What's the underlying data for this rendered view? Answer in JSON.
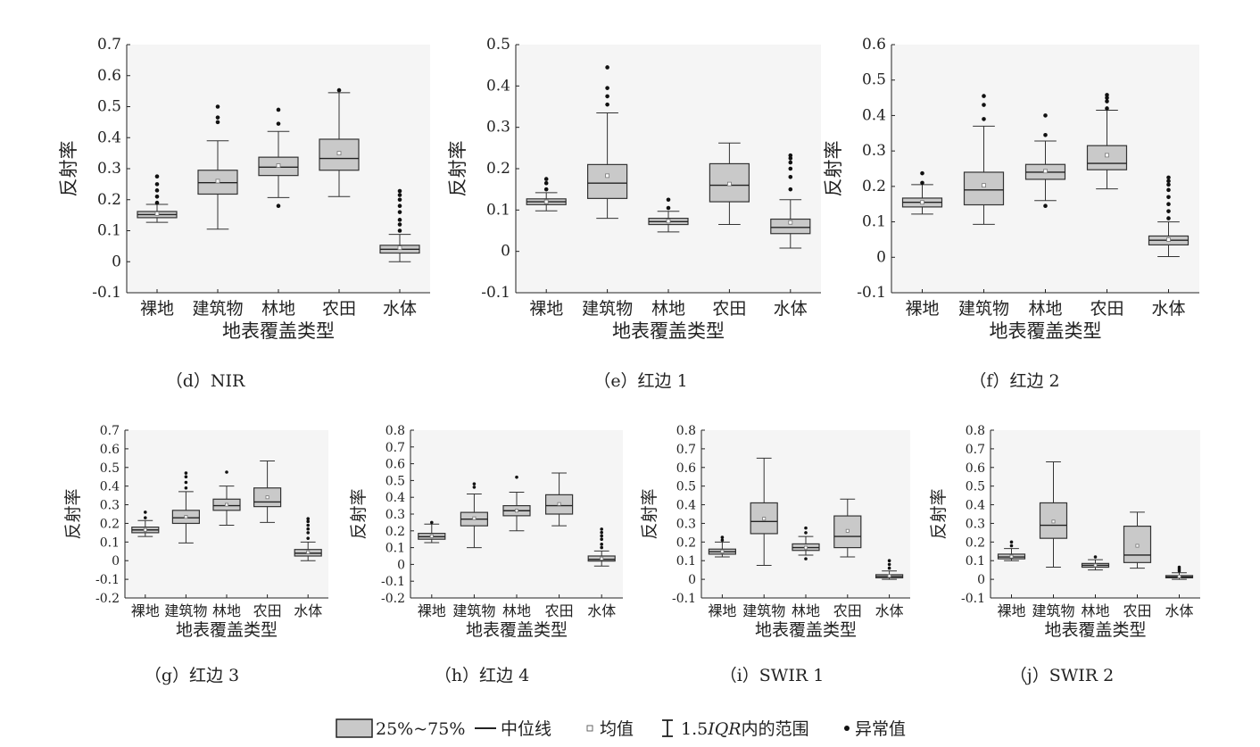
{
  "common": {
    "xlabel": "地表覆盖类型",
    "ylabel": "反射率",
    "categories": [
      "裸地",
      "建筑物",
      "林地",
      "农田",
      "水体"
    ]
  },
  "legend": {
    "box": "25%~75%",
    "median": "中位线",
    "mean": "均值",
    "whisker_prefix": "1.5",
    "whisker_italic": "IQR",
    "whisker_suffix": "内的范围",
    "outlier": "异常值"
  },
  "colors": {
    "box_fill": "#c9c9c9",
    "panel_bg": "#f5f5f5"
  },
  "chart_data": [
    {
      "id": "d",
      "type": "box",
      "caption": "（d）NIR",
      "ylim": [
        -0.1,
        0.7
      ],
      "yticks": [
        "-0.1",
        "0",
        "0.1",
        "0.2",
        "0.3",
        "0.4",
        "0.5",
        "0.6",
        "0.7"
      ],
      "series": [
        {
          "q1": 0.142,
          "median": 0.152,
          "q3": 0.162,
          "mean": 0.155,
          "wlow": 0.127,
          "whigh": 0.185,
          "outliers": [
            0.19,
            0.21,
            0.23,
            0.25,
            0.275
          ]
        },
        {
          "q1": 0.218,
          "median": 0.255,
          "q3": 0.295,
          "mean": 0.26,
          "wlow": 0.105,
          "whigh": 0.39,
          "outliers": [
            0.45,
            0.465,
            0.5
          ]
        },
        {
          "q1": 0.278,
          "median": 0.305,
          "q3": 0.337,
          "mean": 0.31,
          "wlow": 0.207,
          "whigh": 0.42,
          "outliers": [
            0.18,
            0.445,
            0.49
          ]
        },
        {
          "q1": 0.295,
          "median": 0.333,
          "q3": 0.395,
          "mean": 0.35,
          "wlow": 0.21,
          "whigh": 0.545,
          "outliers": [
            0.553
          ]
        },
        {
          "q1": 0.028,
          "median": 0.04,
          "q3": 0.053,
          "mean": 0.045,
          "wlow": 0.0,
          "whigh": 0.088,
          "outliers": [
            0.1,
            0.12,
            0.135,
            0.16,
            0.18,
            0.2,
            0.215,
            0.228
          ]
        }
      ]
    },
    {
      "id": "e",
      "type": "box",
      "caption": "（e）红边 1",
      "ylim": [
        -0.1,
        0.5
      ],
      "yticks": [
        "-0.1",
        "0",
        "0.1",
        "0.2",
        "0.3",
        "0.4",
        "0.5"
      ],
      "series": [
        {
          "q1": 0.113,
          "median": 0.12,
          "q3": 0.127,
          "mean": 0.12,
          "wlow": 0.098,
          "whigh": 0.142,
          "outliers": [
            0.15,
            0.165,
            0.175
          ]
        },
        {
          "q1": 0.128,
          "median": 0.165,
          "q3": 0.21,
          "mean": 0.183,
          "wlow": 0.08,
          "whigh": 0.335,
          "outliers": [
            0.355,
            0.375,
            0.395,
            0.445
          ]
        },
        {
          "q1": 0.065,
          "median": 0.072,
          "q3": 0.08,
          "mean": 0.073,
          "wlow": 0.047,
          "whigh": 0.097,
          "outliers": [
            0.105,
            0.125
          ]
        },
        {
          "q1": 0.12,
          "median": 0.16,
          "q3": 0.212,
          "mean": 0.163,
          "wlow": 0.065,
          "whigh": 0.262,
          "outliers": []
        },
        {
          "q1": 0.043,
          "median": 0.058,
          "q3": 0.078,
          "mean": 0.07,
          "wlow": 0.008,
          "whigh": 0.125,
          "outliers": [
            0.15,
            0.18,
            0.2,
            0.215,
            0.225,
            0.232
          ]
        }
      ]
    },
    {
      "id": "f",
      "type": "box",
      "caption": "（f）红边 2",
      "ylim": [
        -0.1,
        0.6
      ],
      "yticks": [
        "-0.1",
        "0",
        "0.1",
        "0.2",
        "0.3",
        "0.4",
        "0.5",
        "0.6"
      ],
      "series": [
        {
          "q1": 0.142,
          "median": 0.155,
          "q3": 0.167,
          "mean": 0.155,
          "wlow": 0.122,
          "whigh": 0.205,
          "outliers": [
            0.21,
            0.237
          ]
        },
        {
          "q1": 0.148,
          "median": 0.19,
          "q3": 0.24,
          "mean": 0.203,
          "wlow": 0.093,
          "whigh": 0.37,
          "outliers": [
            0.39,
            0.43,
            0.455
          ]
        },
        {
          "q1": 0.22,
          "median": 0.24,
          "q3": 0.262,
          "mean": 0.243,
          "wlow": 0.16,
          "whigh": 0.328,
          "outliers": [
            0.145,
            0.345,
            0.4
          ]
        },
        {
          "q1": 0.247,
          "median": 0.265,
          "q3": 0.315,
          "mean": 0.288,
          "wlow": 0.193,
          "whigh": 0.415,
          "outliers": [
            0.42,
            0.44,
            0.45,
            0.458
          ]
        },
        {
          "q1": 0.035,
          "median": 0.048,
          "q3": 0.06,
          "mean": 0.05,
          "wlow": 0.002,
          "whigh": 0.1,
          "outliers": [
            0.11,
            0.13,
            0.15,
            0.17,
            0.19,
            0.205,
            0.215,
            0.225
          ]
        }
      ]
    },
    {
      "id": "g",
      "type": "box",
      "caption": "（g）红边 3",
      "ylim": [
        -0.2,
        0.7
      ],
      "yticks": [
        "-0.2",
        "-0.1",
        "0",
        "0.1",
        "0.2",
        "0.3",
        "0.4",
        "0.5",
        "0.6",
        "0.7"
      ],
      "series": [
        {
          "q1": 0.15,
          "median": 0.165,
          "q3": 0.18,
          "mean": 0.165,
          "wlow": 0.13,
          "whigh": 0.215,
          "outliers": [
            0.23,
            0.26
          ]
        },
        {
          "q1": 0.2,
          "median": 0.23,
          "q3": 0.27,
          "mean": 0.235,
          "wlow": 0.095,
          "whigh": 0.37,
          "outliers": [
            0.39,
            0.42,
            0.45,
            0.47
          ]
        },
        {
          "q1": 0.27,
          "median": 0.295,
          "q3": 0.33,
          "mean": 0.3,
          "wlow": 0.19,
          "whigh": 0.4,
          "outliers": [
            0.475
          ]
        },
        {
          "q1": 0.29,
          "median": 0.315,
          "q3": 0.39,
          "mean": 0.34,
          "wlow": 0.205,
          "whigh": 0.535,
          "outliers": []
        },
        {
          "q1": 0.025,
          "median": 0.04,
          "q3": 0.06,
          "mean": 0.045,
          "wlow": 0.0,
          "whigh": 0.1,
          "outliers": [
            0.12,
            0.15,
            0.17,
            0.19,
            0.21,
            0.225
          ]
        }
      ]
    },
    {
      "id": "h",
      "type": "box",
      "caption": "（h）红边 4",
      "ylim": [
        -0.2,
        0.8
      ],
      "yticks": [
        "-0.2",
        "-0.1",
        "0",
        "0.1",
        "0.2",
        "0.3",
        "0.4",
        "0.5",
        "0.6",
        "0.7",
        "0.8"
      ],
      "series": [
        {
          "q1": 0.15,
          "median": 0.165,
          "q3": 0.185,
          "mean": 0.168,
          "wlow": 0.13,
          "whigh": 0.24,
          "outliers": [
            0.25
          ]
        },
        {
          "q1": 0.23,
          "median": 0.27,
          "q3": 0.31,
          "mean": 0.275,
          "wlow": 0.1,
          "whigh": 0.42,
          "outliers": [
            0.46,
            0.48
          ]
        },
        {
          "q1": 0.29,
          "median": 0.32,
          "q3": 0.35,
          "mean": 0.32,
          "wlow": 0.2,
          "whigh": 0.43,
          "outliers": [
            0.52
          ]
        },
        {
          "q1": 0.3,
          "median": 0.35,
          "q3": 0.415,
          "mean": 0.36,
          "wlow": 0.23,
          "whigh": 0.545,
          "outliers": []
        },
        {
          "q1": 0.02,
          "median": 0.03,
          "q3": 0.05,
          "mean": 0.035,
          "wlow": -0.01,
          "whigh": 0.08,
          "outliers": [
            0.1,
            0.12,
            0.15,
            0.17,
            0.19,
            0.21
          ]
        }
      ]
    },
    {
      "id": "i",
      "type": "box",
      "caption": "（i）SWIR 1",
      "ylim": [
        -0.1,
        0.8
      ],
      "yticks": [
        "-0.1",
        "0",
        "0.1",
        "0.2",
        "0.3",
        "0.4",
        "0.5",
        "0.6",
        "0.7",
        "0.8"
      ],
      "series": [
        {
          "q1": 0.135,
          "median": 0.148,
          "q3": 0.162,
          "mean": 0.15,
          "wlow": 0.12,
          "whigh": 0.2,
          "outliers": [
            0.21,
            0.225
          ]
        },
        {
          "q1": 0.245,
          "median": 0.31,
          "q3": 0.41,
          "mean": 0.325,
          "wlow": 0.075,
          "whigh": 0.65,
          "outliers": []
        },
        {
          "q1": 0.155,
          "median": 0.17,
          "q3": 0.19,
          "mean": 0.17,
          "wlow": 0.13,
          "whigh": 0.23,
          "outliers": [
            0.11,
            0.25,
            0.275
          ]
        },
        {
          "q1": 0.17,
          "median": 0.23,
          "q3": 0.34,
          "mean": 0.26,
          "wlow": 0.12,
          "whigh": 0.43,
          "outliers": []
        },
        {
          "q1": 0.008,
          "median": 0.015,
          "q3": 0.025,
          "mean": 0.018,
          "wlow": 0.0,
          "whigh": 0.045,
          "outliers": [
            0.06,
            0.08,
            0.1
          ]
        }
      ]
    },
    {
      "id": "j",
      "type": "box",
      "caption": "（j）SWIR 2",
      "ylim": [
        -0.1,
        0.8
      ],
      "yticks": [
        "-0.1",
        "0",
        "0.1",
        "0.2",
        "0.3",
        "0.4",
        "0.5",
        "0.6",
        "0.7",
        "0.8"
      ],
      "series": [
        {
          "q1": 0.11,
          "median": 0.12,
          "q3": 0.135,
          "mean": 0.122,
          "wlow": 0.1,
          "whigh": 0.165,
          "outliers": [
            0.18,
            0.2
          ]
        },
        {
          "q1": 0.22,
          "median": 0.29,
          "q3": 0.41,
          "mean": 0.31,
          "wlow": 0.065,
          "whigh": 0.63,
          "outliers": []
        },
        {
          "q1": 0.065,
          "median": 0.075,
          "q3": 0.085,
          "mean": 0.075,
          "wlow": 0.05,
          "whigh": 0.105,
          "outliers": [
            0.12
          ]
        },
        {
          "q1": 0.09,
          "median": 0.13,
          "q3": 0.285,
          "mean": 0.18,
          "wlow": 0.06,
          "whigh": 0.36,
          "outliers": []
        },
        {
          "q1": 0.008,
          "median": 0.013,
          "q3": 0.02,
          "mean": 0.015,
          "wlow": 0.0,
          "whigh": 0.035,
          "outliers": [
            0.045,
            0.055,
            0.065
          ]
        }
      ]
    }
  ]
}
